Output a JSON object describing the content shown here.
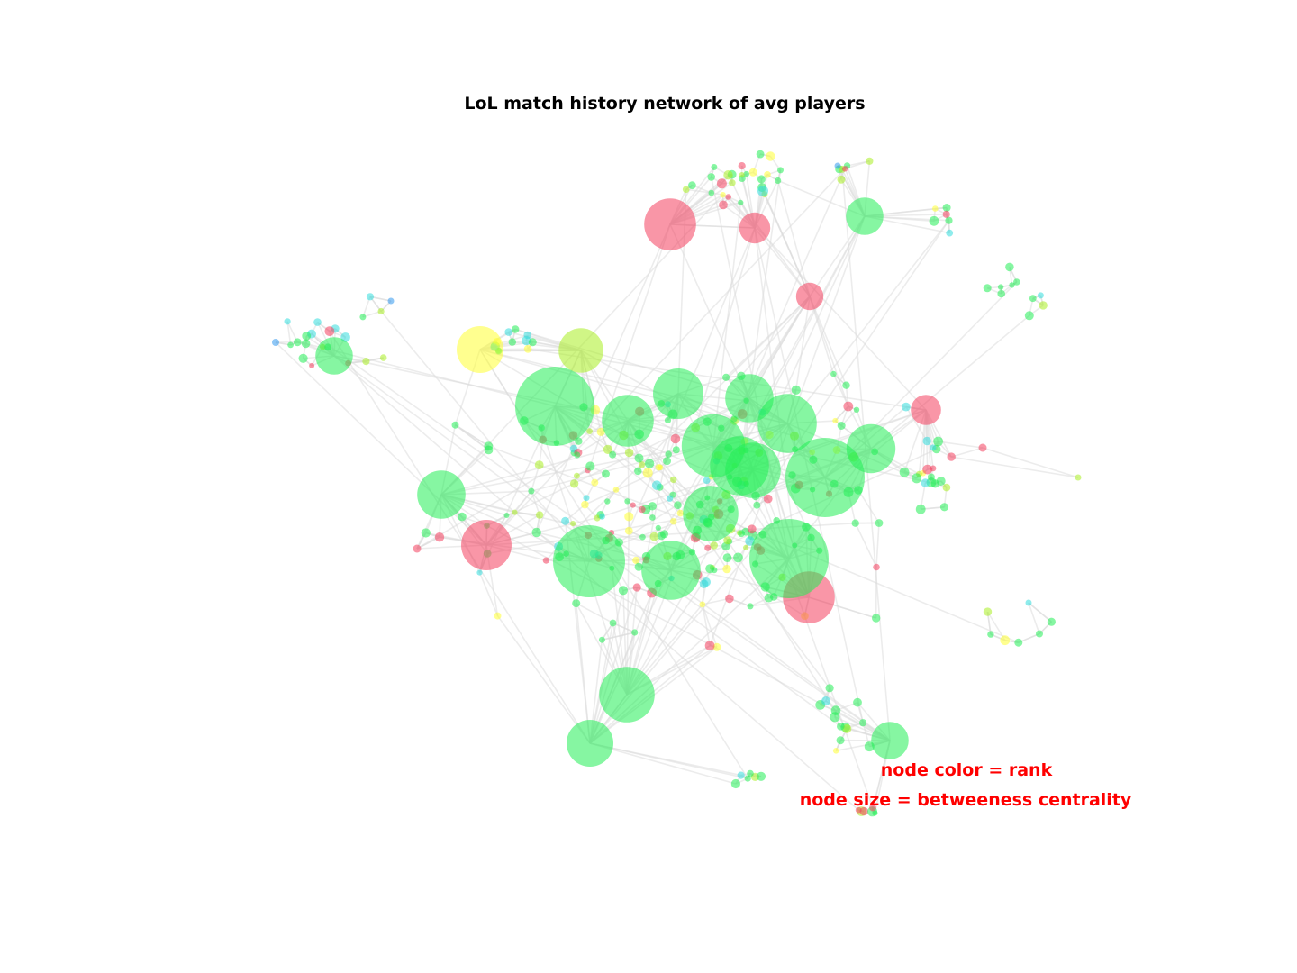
{
  "figure": {
    "title": "LoL match history network of avg players",
    "annotations": [
      "node color = rank",
      "node size = betweeness centrality"
    ]
  },
  "colors": {
    "green": "#22ee55",
    "lime": "#aaee22",
    "yellow": "#ffff33",
    "red": "#f43f5e",
    "cyan": "#33dddd",
    "blue": "#3399ee",
    "edge": "#dddddd"
  },
  "chart_data": {
    "type": "network",
    "encoding": {
      "node_color": "rank",
      "node_size": "betweenness centrality"
    },
    "hubs": [
      {
        "color": "red",
        "betweenness": 0.62
      },
      {
        "color": "red",
        "betweenness": 0.33
      },
      {
        "color": "red",
        "betweenness": 0.28
      },
      {
        "color": "red",
        "betweenness": 0.6
      },
      {
        "color": "red",
        "betweenness": 0.62
      },
      {
        "color": "red",
        "betweenness": 0.32
      },
      {
        "color": "yellow",
        "betweenness": 0.55
      },
      {
        "color": "lime",
        "betweenness": 0.52
      },
      {
        "color": "green",
        "betweenness": 0.42
      },
      {
        "color": "green",
        "betweenness": 1.0
      },
      {
        "color": "green",
        "betweenness": 0.62
      },
      {
        "color": "green",
        "betweenness": 0.6
      },
      {
        "color": "green",
        "betweenness": 0.78
      },
      {
        "color": "green",
        "betweenness": 0.72
      },
      {
        "color": "green",
        "betweenness": 1.0
      },
      {
        "color": "green",
        "betweenness": 0.58
      },
      {
        "color": "green",
        "betweenness": 0.67
      },
      {
        "color": "green",
        "betweenness": 0.9
      },
      {
        "color": "green",
        "betweenness": 1.0
      },
      {
        "color": "green",
        "betweenness": 0.72
      },
      {
        "color": "green",
        "betweenness": 0.57
      },
      {
        "color": "green",
        "betweenness": 0.67
      },
      {
        "color": "green",
        "betweenness": 0.55
      },
      {
        "color": "green",
        "betweenness": 0.57
      },
      {
        "color": "green",
        "betweenness": 0.67
      },
      {
        "color": "green",
        "betweenness": 0.72
      },
      {
        "color": "green",
        "betweenness": 0.42
      },
      {
        "color": "green",
        "betweenness": 0.42
      }
    ]
  }
}
